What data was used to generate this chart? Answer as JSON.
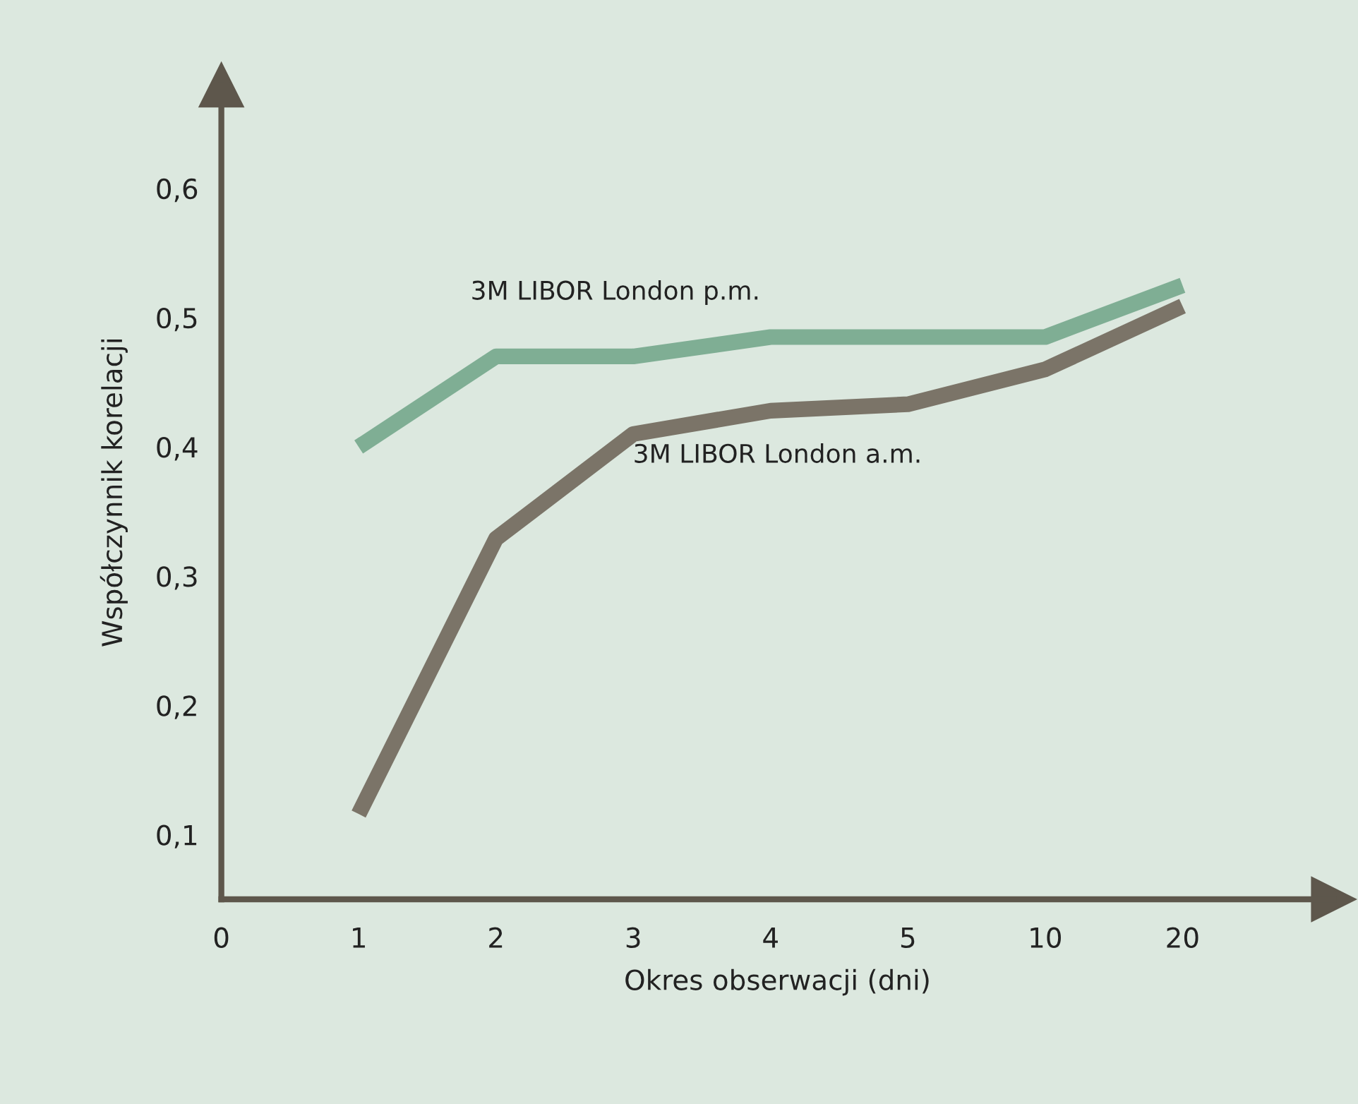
{
  "chart_data": {
    "type": "line",
    "xlabel": "Okres obserwacji (dni)",
    "ylabel": "Współczynnik korelacji",
    "categories": [
      "0",
      "1",
      "2",
      "3",
      "4",
      "5",
      "10",
      "20"
    ],
    "series": [
      {
        "name": "3M LIBOR London p.m.",
        "color": "#7fae94",
        "values": [
          null,
          0.4,
          0.47,
          0.47,
          0.485,
          0.485,
          0.485,
          0.525
        ]
      },
      {
        "name": "3M LIBOR London a.m.",
        "color": "#7b7468",
        "values": [
          null,
          0.116,
          0.329,
          0.41,
          0.428,
          0.433,
          0.46,
          0.509
        ]
      }
    ],
    "ylim": [
      0.05,
      0.68
    ],
    "yticks": [
      {
        "value": 0.1,
        "label": "0,1"
      },
      {
        "value": 0.2,
        "label": "0,2"
      },
      {
        "value": 0.3,
        "label": "0,3"
      },
      {
        "value": 0.4,
        "label": "0,4"
      },
      {
        "value": 0.5,
        "label": "0,5"
      },
      {
        "value": 0.6,
        "label": "0,6"
      }
    ],
    "grid": false,
    "legend": false,
    "marker": "none",
    "line_style": "solid"
  }
}
